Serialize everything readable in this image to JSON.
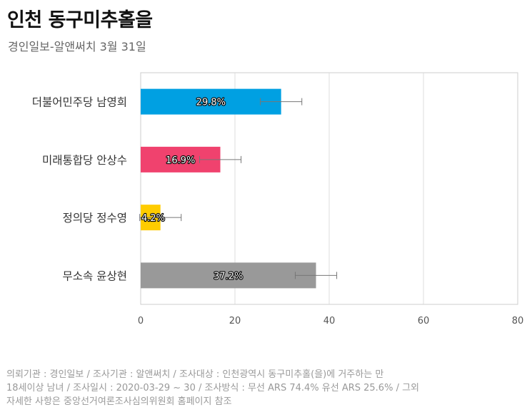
{
  "title": "인천 동구미추홀을",
  "subtitle": "경인일보-알앤써치 3월 31일",
  "chart_data": {
    "type": "bar",
    "orientation": "horizontal",
    "categories": [
      "더불어민주당 남영희",
      "미래통합당 안상수",
      "정의당 정수영",
      "무소속 윤상현"
    ],
    "values": [
      29.8,
      16.9,
      4.2,
      37.2
    ],
    "value_labels": [
      "29.8%",
      "16.9%",
      "4.2%",
      "37.2%"
    ],
    "error_margin": 4.4,
    "colors": [
      "#00a0e2",
      "#f0426e",
      "#ffcc00",
      "#999999"
    ],
    "xlim": [
      0,
      80
    ],
    "xticks": [
      0,
      20,
      40,
      60,
      80
    ],
    "grid": true
  },
  "footnote": {
    "line1": "의뢰기관 : 경인일보 / 조사기관 : 알앤써치 / 조사대상 : 인천광역시 동구미추홀(을)에 거주하는 만",
    "line2": "18세이상 남녀 / 조사일시 : 2020-03-29 ~ 30 / 조사방식 : 무선 ARS 74.4% 유선 ARS 25.6% / 그외",
    "line3": "자세한 사항은 중앙선거여론조사심의위원회 홈페이지 참조"
  }
}
